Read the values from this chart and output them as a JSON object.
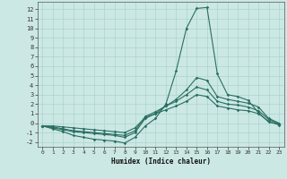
{
  "xlabel": "Humidex (Indice chaleur)",
  "bg_color": "#cce8e4",
  "grid_color": "#aad4cc",
  "line_color": "#2a6e62",
  "xlim": [
    -0.5,
    23.5
  ],
  "ylim": [
    -2.5,
    12.8
  ],
  "xticks": [
    0,
    1,
    2,
    3,
    4,
    5,
    6,
    7,
    8,
    9,
    10,
    11,
    12,
    13,
    14,
    15,
    16,
    17,
    18,
    19,
    20,
    21,
    22,
    23
  ],
  "yticks": [
    -2,
    -1,
    0,
    1,
    2,
    3,
    4,
    5,
    6,
    7,
    8,
    9,
    10,
    11,
    12
  ],
  "curve1_x": [
    0,
    1,
    2,
    3,
    4,
    5,
    6,
    7,
    8,
    9,
    10,
    11,
    12,
    13,
    14,
    15,
    16,
    17,
    18,
    19,
    20,
    21,
    22,
    23
  ],
  "curve1_y": [
    -0.3,
    -0.6,
    -0.9,
    -1.3,
    -1.5,
    -1.7,
    -1.8,
    -1.9,
    -2.1,
    -1.5,
    -0.3,
    0.5,
    2.0,
    5.5,
    10.0,
    12.1,
    12.2,
    5.2,
    3.0,
    2.8,
    2.4,
    1.1,
    0.1,
    -0.1
  ],
  "curve2_x": [
    0,
    1,
    2,
    3,
    4,
    5,
    6,
    7,
    8,
    9,
    10,
    11,
    12,
    13,
    14,
    15,
    16,
    17,
    18,
    19,
    20,
    21,
    22,
    23
  ],
  "curve2_y": [
    -0.3,
    -0.5,
    -0.7,
    -0.9,
    -1.0,
    -1.1,
    -1.2,
    -1.3,
    -1.5,
    -1.0,
    0.5,
    1.0,
    1.8,
    2.5,
    3.5,
    4.8,
    4.5,
    2.8,
    2.5,
    2.3,
    2.1,
    1.7,
    0.5,
    0.0
  ],
  "curve3_x": [
    0,
    1,
    2,
    3,
    4,
    5,
    6,
    7,
    8,
    9,
    10,
    11,
    12,
    13,
    14,
    15,
    16,
    17,
    18,
    19,
    20,
    21,
    22,
    23
  ],
  "curve3_y": [
    -0.3,
    -0.4,
    -0.6,
    -0.8,
    -0.9,
    -1.0,
    -1.1,
    -1.2,
    -1.3,
    -0.8,
    0.7,
    1.2,
    1.8,
    2.3,
    3.0,
    3.8,
    3.5,
    2.3,
    2.0,
    1.9,
    1.7,
    1.3,
    0.4,
    -0.1
  ],
  "curve4_x": [
    0,
    1,
    2,
    3,
    4,
    5,
    6,
    7,
    8,
    9,
    10,
    11,
    12,
    13,
    14,
    15,
    16,
    17,
    18,
    19,
    20,
    21,
    22,
    23
  ],
  "curve4_y": [
    -0.3,
    -0.3,
    -0.4,
    -0.5,
    -0.6,
    -0.7,
    -0.8,
    -0.9,
    -1.0,
    -0.5,
    0.6,
    1.0,
    1.4,
    1.8,
    2.3,
    3.0,
    2.8,
    1.8,
    1.6,
    1.4,
    1.3,
    1.0,
    0.2,
    -0.2
  ]
}
